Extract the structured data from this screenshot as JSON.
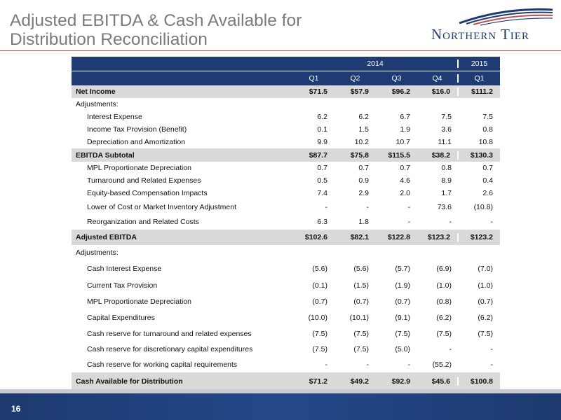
{
  "title": "Adjusted EBITDA & Cash Available for Distribution Reconciliation",
  "logo": {
    "text": "Northern Tier",
    "colors": {
      "swoosh": "#1f3b6e",
      "accent": "#c0504d"
    }
  },
  "table": {
    "years": {
      "y2014": "2014",
      "y2015": "2015"
    },
    "quarters": [
      "Q1",
      "Q2",
      "Q3",
      "Q4",
      "Q1"
    ],
    "rows": [
      {
        "label": "Net Income",
        "values": [
          "$71.5",
          "$57.9",
          "$96.2",
          "$16.0",
          "$111.2"
        ]
      },
      {
        "label": "Adjustments:",
        "values": [
          "",
          "",
          "",
          "",
          ""
        ]
      },
      {
        "label": "Interest Expense",
        "values": [
          "6.2",
          "6.2",
          "6.7",
          "7.5",
          "7.5"
        ]
      },
      {
        "label": "Income Tax Provision (Benefit)",
        "values": [
          "0.1",
          "1.5",
          "1.9",
          "3.6",
          "0.8"
        ]
      },
      {
        "label": "Depreciation and Amortization",
        "values": [
          "9.9",
          "10.2",
          "10.7",
          "11.1",
          "10.8"
        ]
      },
      {
        "label": "EBITDA Subtotal",
        "values": [
          "$87.7",
          "$75.8",
          "$115.5",
          "$38.2",
          "$130.3"
        ]
      },
      {
        "label": "MPL Proportionate Depreciation",
        "values": [
          "0.7",
          "0.7",
          "0.7",
          "0.8",
          "0.7"
        ]
      },
      {
        "label": "Turnaround and Related Expenses",
        "values": [
          "0.5",
          "0.9",
          "4.6",
          "8.9",
          "0.4"
        ]
      },
      {
        "label": "Equity-based Compensation Impacts",
        "values": [
          "7.4",
          "2.9",
          "2.0",
          "1.7",
          "2.6"
        ]
      },
      {
        "label": "Lower of Cost or Market Inventory Adjustment",
        "values": [
          "-",
          "-",
          "-",
          "73.6",
          "(10.8)"
        ]
      },
      {
        "label": "Reorganization and Related Costs",
        "values": [
          "6.3",
          "1.8",
          "-",
          "-",
          "-"
        ]
      },
      {
        "label": "Adjusted EBITDA",
        "values": [
          "$102.6",
          "$82.1",
          "$122.8",
          "$123.2",
          "$123.2"
        ]
      },
      {
        "label": "Adjustments:",
        "values": [
          "",
          "",
          "",
          "",
          ""
        ]
      },
      {
        "label": "Cash Interest Expense",
        "values": [
          "(5.6)",
          "(5.6)",
          "(5.7)",
          "(6.9)",
          "(7.0)"
        ]
      },
      {
        "label": "Current Tax Provision",
        "values": [
          "(0.1)",
          "(1.5)",
          "(1.9)",
          "(1.0)",
          "(1.0)"
        ]
      },
      {
        "label": "MPL Proportionate Depreciation",
        "values": [
          "(0.7)",
          "(0.7)",
          "(0.7)",
          "(0.8)",
          "(0.7)"
        ]
      },
      {
        "label": "Capital Expenditures",
        "values": [
          "(10.0)",
          "(10.1)",
          "(9.1)",
          "(6.2)",
          "(6.2)"
        ]
      },
      {
        "label": "Cash reserve for turnaround and related expenses",
        "values": [
          "(7.5)",
          "(7.5)",
          "(7.5)",
          "(7.5)",
          "(7.5)"
        ]
      },
      {
        "label": "Cash reserve for discretionary capital expenditures",
        "values": [
          "(7.5)",
          "(7.5)",
          "(5.0)",
          "-",
          "-"
        ]
      },
      {
        "label": "Cash reserve for working capital requirements",
        "values": [
          "-",
          "-",
          "-",
          "(55.2)",
          "-"
        ]
      },
      {
        "label": "Cash Available for Distribution",
        "values": [
          "$71.2",
          "$49.2",
          "$92.9",
          "$45.6",
          "$100.8"
        ]
      }
    ]
  },
  "footer": {
    "page_number": "16",
    "colors": {
      "band": "#1f3b73"
    }
  }
}
